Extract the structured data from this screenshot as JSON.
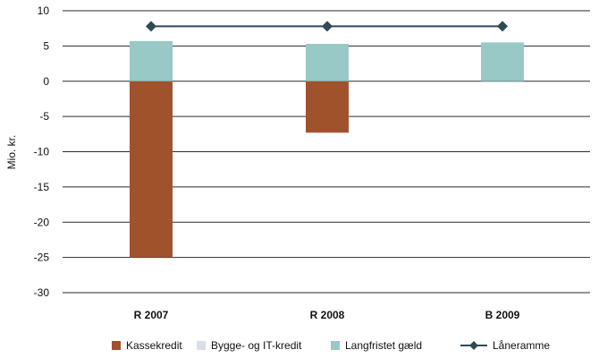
{
  "chart_data": {
    "type": "bar",
    "stacked": true,
    "ylabel": "Mio. kr.",
    "xlabel": "",
    "title": "",
    "ylim": [
      -30,
      10
    ],
    "yticks": [
      10,
      5,
      0,
      -5,
      -10,
      -15,
      -20,
      -25,
      -30
    ],
    "categories": [
      "R 2007",
      "R 2008",
      "B 2009"
    ],
    "grid": true,
    "legend_position": "bottom",
    "series": [
      {
        "name": "Kassekredit",
        "kind": "bar",
        "color": "#a0522d",
        "values": [
          -25.0,
          -7.3,
          0
        ]
      },
      {
        "name": "Bygge- og IT-kredit",
        "kind": "bar",
        "color": "#d9dfe4",
        "values": [
          0,
          0,
          0
        ]
      },
      {
        "name": "Langfristet gæld",
        "kind": "bar",
        "color": "#98c9c6",
        "values": [
          5.7,
          5.3,
          5.5
        ]
      },
      {
        "name": "Låneramme",
        "kind": "line",
        "color": "#2f4a55",
        "marker": "diamond",
        "values": [
          7.8,
          7.8,
          7.8
        ]
      }
    ]
  }
}
